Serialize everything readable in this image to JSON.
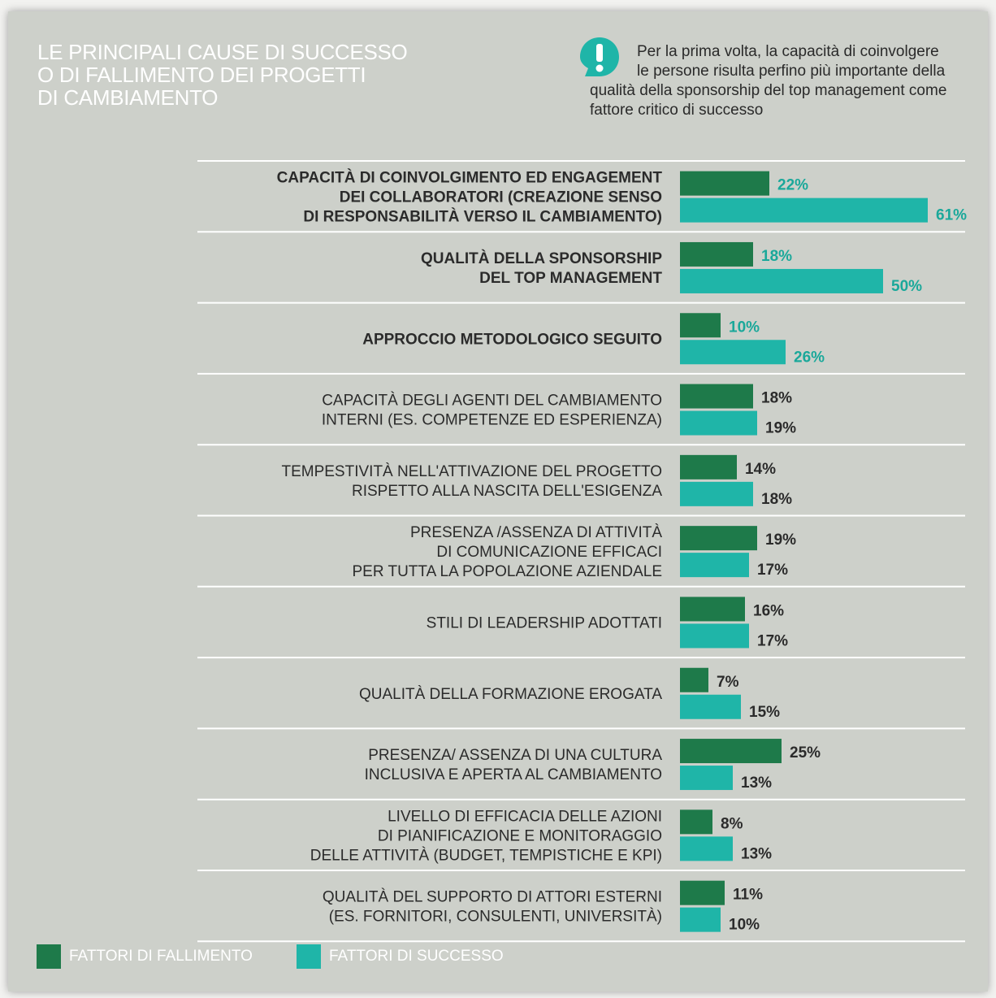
{
  "title": [
    "LE PRINCIPALI CAUSE DI SUCCESSO",
    "O DI FALLIMENTO DEI PROGETTI",
    "DI CAMBIAMENTO"
  ],
  "note": {
    "icon": "exclamation-icon",
    "lines": [
      "Per la prima volta, la capacità di coinvolgere",
      "le persone risulta perfino più importante della",
      "qualità della sponsorship del top management come",
      "fattore critico di successo"
    ]
  },
  "colors": {
    "failure": "#1e7a4a",
    "success": "#1fb5a8",
    "highlight_text": "#1aa89a",
    "background": "#cdd0ca"
  },
  "chart_data": {
    "type": "bar",
    "orientation": "horizontal",
    "series": [
      {
        "name": "FATTORI DI FALLIMENTO",
        "color": "#1e7a4a",
        "values": [
          22,
          18,
          10,
          18,
          14,
          19,
          16,
          7,
          25,
          8,
          11
        ]
      },
      {
        "name": "FATTORI DI SUCCESSO",
        "color": "#1fb5a8",
        "values": [
          61,
          50,
          26,
          19,
          18,
          17,
          17,
          15,
          13,
          13,
          10
        ]
      }
    ],
    "value_labels": {
      "failure": [
        "22%",
        "18%",
        "10%",
        "18%",
        "14%",
        "19%",
        "16%",
        "7%",
        "25%",
        "8%",
        "11%"
      ],
      "success": [
        "61%",
        "50%",
        "26%",
        "19%",
        "18%",
        "17%",
        "17%",
        "15%",
        "13%",
        "13%",
        "10%"
      ]
    },
    "categories": [
      {
        "lines": [
          "CAPACITÀ DI COINVOLGIMENTO ED ENGAGEMENT",
          "DEI COLLABORATORI (CREAZIONE SENSO",
          "DI RESPONSABILITÀ VERSO IL CAMBIAMENTO)"
        ],
        "bold": true
      },
      {
        "lines": [
          "QUALITÀ DELLA SPONSORSHIP",
          "DEL TOP MANAGEMENT"
        ],
        "bold": true
      },
      {
        "lines": [
          "APPROCCIO METODOLOGICO SEGUITO"
        ],
        "bold": true
      },
      {
        "lines": [
          "CAPACITÀ DEGLI AGENTI DEL CAMBIAMENTO",
          "INTERNI (ES. COMPETENZE ED ESPERIENZA)"
        ],
        "bold": false
      },
      {
        "lines": [
          "TEMPESTIVITÀ NELL'ATTIVAZIONE DEL PROGETTO",
          "RISPETTO ALLA NASCITA DELL'ESIGENZA"
        ],
        "bold": false
      },
      {
        "lines": [
          "PRESENZA /ASSENZA DI ATTIVITÀ",
          "DI COMUNICAZIONE EFFICACI",
          "PER TUTTA LA POPOLAZIONE AZIENDALE"
        ],
        "bold": false
      },
      {
        "lines": [
          "STILI DI LEADERSHIP ADOTTATI"
        ],
        "bold": false
      },
      {
        "lines": [
          "QUALITÀ DELLA FORMAZIONE EROGATA"
        ],
        "bold": false
      },
      {
        "lines": [
          "PRESENZA/ ASSENZA DI UNA CULTURA",
          "INCLUSIVA E APERTA AL CAMBIAMENTO"
        ],
        "bold": false
      },
      {
        "lines": [
          "LIVELLO DI EFFICACIA DELLE AZIONI",
          "DI PIANIFICAZIONE E MONITORAGGIO",
          "DELLE ATTIVITÀ (BUDGET, TEMPISTICHE E KPI)"
        ],
        "bold": false
      },
      {
        "lines": [
          "QUALITÀ DEL SUPPORTO DI ATTORI ESTERNI",
          "(ES. FORNITORI, CONSULENTI, UNIVERSITÀ)"
        ],
        "bold": false
      }
    ],
    "highlighted_rows": 3,
    "legend_position": "bottom-left"
  },
  "legend": [
    {
      "label": "FATTORI DI FALLIMENTO",
      "color": "#1e7a4a"
    },
    {
      "label": "FATTORI DI SUCCESSO",
      "color": "#1fb5a8"
    }
  ]
}
